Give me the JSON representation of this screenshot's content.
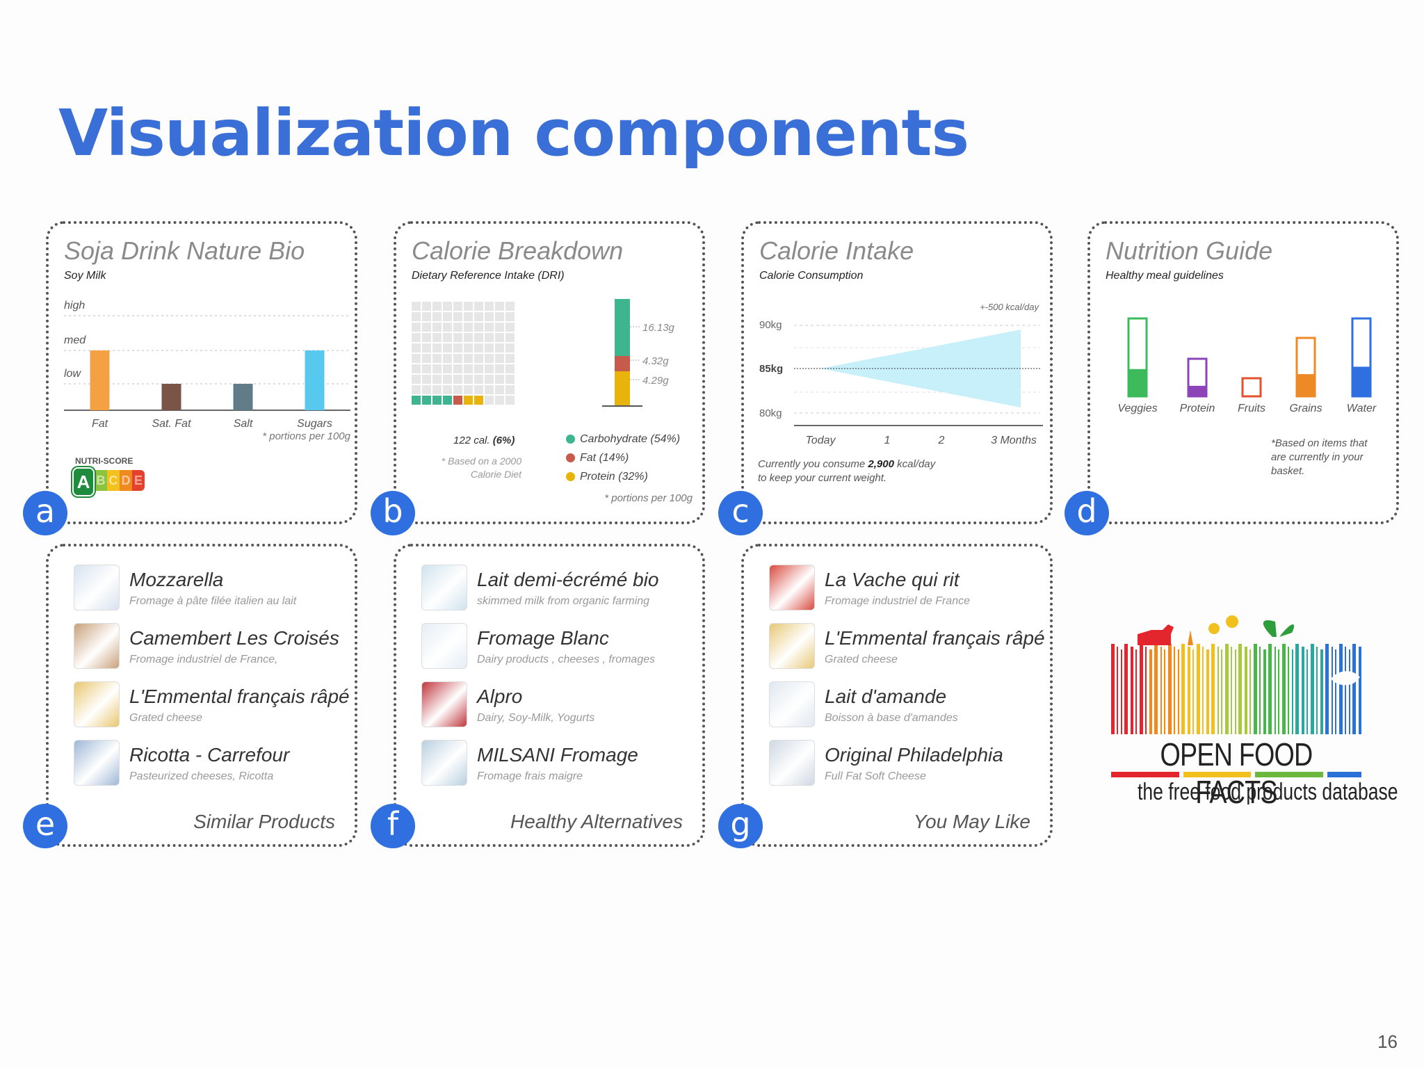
{
  "slide": {
    "title": "Visualization components",
    "page_number": "16"
  },
  "badges": [
    "a",
    "b",
    "c",
    "d",
    "e",
    "f",
    "g"
  ],
  "card_a": {
    "title": "Soja Drink Nature Bio",
    "subtitle": "Soy Milk",
    "levels": [
      "high",
      "med",
      "low"
    ],
    "footnote": "* portions per 100g",
    "nutri_score_label": "NUTRI-SCORE",
    "nutri_grades": [
      "A",
      "B",
      "C",
      "D",
      "E"
    ],
    "nutri_colors": [
      "#1f8c3d",
      "#8cc43f",
      "#f3c21c",
      "#ef8a1f",
      "#e4422c"
    ],
    "chart_data": {
      "type": "bar",
      "categories": [
        "Fat",
        "Sat. Fat",
        "Salt",
        "Sugars"
      ],
      "values": [
        "med",
        "low",
        "low",
        "med"
      ],
      "colors": [
        "#f5a042",
        "#7b5448",
        "#5f7c88",
        "#57c8ee"
      ]
    }
  },
  "card_b": {
    "title": "Calorie Breakdown",
    "subtitle": "Dietary Reference Intake (DRI)",
    "calories_text": "122 cal.",
    "calories_pct": "(6%)",
    "based_on": [
      "* Based on a 2000",
      "Calorie Diet"
    ],
    "legend": [
      {
        "label": "Carbohydrate (54%)",
        "color": "#3fb58f"
      },
      {
        "label": "Fat (14%)",
        "color": "#c75b4b"
      },
      {
        "label": "Protein (32%)",
        "color": "#e8b40c"
      }
    ],
    "stack_labels": [
      "16.13g",
      "4.32g",
      "4.29g"
    ],
    "footnote": "* portions per 100g",
    "waffle_filled": [
      {
        "count": 4,
        "color": "#3fb58f"
      },
      {
        "count": 1,
        "color": "#c75b4b"
      },
      {
        "count": 2,
        "color": "#e8b40c"
      }
    ]
  },
  "card_c": {
    "title": "Calorie Intake",
    "subtitle": "Calorie Consumption",
    "annotation": "+-500 kcal/day",
    "y_ticks": [
      "90kg",
      "85kg",
      "80kg"
    ],
    "x_ticks": [
      "Today",
      "1",
      "2",
      "3 Months"
    ],
    "note_line1_pre": "Currently you consume",
    "note_value": "2,900",
    "note_line1_post": "kcal/day",
    "note_line2": "to keep your current weight."
  },
  "card_d": {
    "title": "Nutrition Guide",
    "subtitle": "Healthy meal guidelines",
    "note": [
      "*Based on items that",
      "are currently in your",
      "basket."
    ],
    "chart_data": {
      "type": "bar",
      "categories": [
        "Veggies",
        "Protein",
        "Fruits",
        "Grains",
        "Water"
      ],
      "fill_fraction": [
        0.35,
        0.28,
        0.0,
        0.38,
        0.38
      ],
      "colors": [
        "#3dbb5c",
        "#8b45b8",
        "#e4502c",
        "#ee8a25",
        "#2f6fe0"
      ]
    }
  },
  "card_e": {
    "footer": "Similar Products",
    "items": [
      {
        "title": "Mozzarella",
        "subtitle": "Fromage à pâte filée italien au lait"
      },
      {
        "title": "Camembert Les Croisés",
        "subtitle": "Fromage industriel de France,"
      },
      {
        "title": "L'Emmental français râpé",
        "subtitle": "Grated cheese"
      },
      {
        "title": "Ricotta - Carrefour",
        "subtitle": "Pasteurized cheeses, Ricotta"
      }
    ]
  },
  "card_f": {
    "footer": "Healthy Alternatives",
    "items": [
      {
        "title": "Lait demi-écrémé bio",
        "subtitle": "skimmed milk from organic farming"
      },
      {
        "title": "Fromage Blanc",
        "subtitle": "Dairy products , cheeses , fromages"
      },
      {
        "title": "Alpro",
        "subtitle": "Dairy, Soy-Milk, Yogurts"
      },
      {
        "title": "MILSANI Fromage",
        "subtitle": "Fromage frais maigre"
      }
    ]
  },
  "card_g": {
    "footer": "You May Like",
    "items": [
      {
        "title": "La Vache qui rit",
        "subtitle": "Fromage industriel de France"
      },
      {
        "title": "L'Emmental français râpé",
        "subtitle": "Grated cheese"
      },
      {
        "title": "Lait d'amande",
        "subtitle": "Boisson à base d'amandes"
      },
      {
        "title": "Original Philadelphia",
        "subtitle": "Full Fat Soft Cheese"
      }
    ]
  },
  "logo": {
    "name": "OPEN FOOD FACTS",
    "tagline": "the free food products database"
  },
  "thumb_colors": {
    "e": [
      "#d8e2f0",
      "#c9a07a",
      "#e9c76f",
      "#9fb8d6"
    ],
    "f": [
      "#cfe3ee",
      "#e5eef5",
      "#c0363e",
      "#b9d0e0"
    ],
    "g": [
      "#d94b41",
      "#e8c877",
      "#e0e8f0",
      "#cfd8e4"
    ]
  }
}
